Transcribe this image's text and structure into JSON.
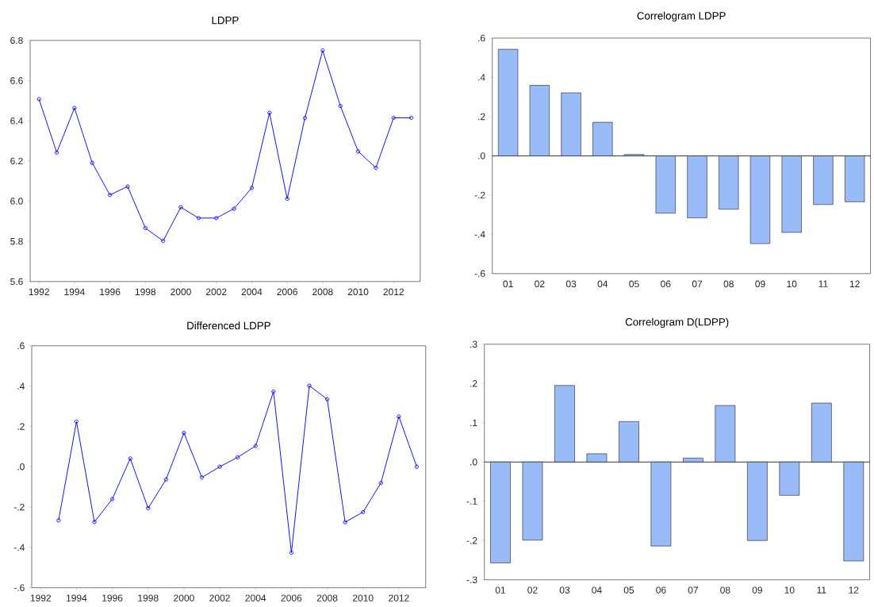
{
  "chart_data": [
    {
      "type": "line",
      "title": "LDPP",
      "marker": "circle",
      "line_style": "solid",
      "grid": false,
      "x": [
        1992,
        1993,
        1994,
        1995,
        1996,
        1997,
        1998,
        1999,
        2000,
        2001,
        2002,
        2003,
        2004,
        2005,
        2006,
        2007,
        2008,
        2009,
        2010,
        2011,
        2012,
        2013
      ],
      "series": [
        {
          "color": "#0000ff",
          "values": [
            6.508,
            6.242,
            6.464,
            6.191,
            6.031,
            6.073,
            5.866,
            5.802,
            5.97,
            5.916,
            5.916,
            5.963,
            6.066,
            6.44,
            6.012,
            6.414,
            6.75,
            6.474,
            6.248,
            6.166,
            6.415,
            6.415
          ]
        }
      ],
      "xlim": [
        1991.5,
        2013.5
      ],
      "xticks": [
        1992,
        1994,
        1996,
        1998,
        2000,
        2002,
        2004,
        2006,
        2008,
        2010,
        2012
      ],
      "ylim": [
        5.6,
        6.8
      ],
      "yticks": [
        {
          "value": 5.6,
          "label": "5.6"
        },
        {
          "value": 5.8,
          "label": "5.8"
        },
        {
          "value": 6.0,
          "label": "6.0"
        },
        {
          "value": 6.2,
          "label": "6.2"
        },
        {
          "value": 6.4,
          "label": "6.4"
        },
        {
          "value": 6.6,
          "label": "6.6"
        },
        {
          "value": 6.8,
          "label": "6.8"
        }
      ]
    },
    {
      "type": "bar",
      "title": "Correlogram LDPP",
      "ref_lines": [
        {
          "axis": "y",
          "value": 0,
          "color": "#000000"
        }
      ],
      "categories": [
        "01",
        "02",
        "03",
        "04",
        "05",
        "06",
        "07",
        "08",
        "09",
        "10",
        "11",
        "12"
      ],
      "series": [
        {
          "color": "#99bbf8",
          "values": [
            0.543,
            0.359,
            0.321,
            0.171,
            0.007,
            -0.292,
            -0.316,
            -0.272,
            -0.447,
            -0.39,
            -0.248,
            -0.234
          ]
        }
      ],
      "ylim": [
        -0.6,
        0.6
      ],
      "yticks": [
        {
          "value": -0.6,
          "label": "-.6"
        },
        {
          "value": -0.4,
          "label": "-.4"
        },
        {
          "value": -0.2,
          "label": "-.2"
        },
        {
          "value": 0,
          "label": ".0"
        },
        {
          "value": 0.2,
          "label": ".2"
        },
        {
          "value": 0.4,
          "label": ".4"
        },
        {
          "value": 0.6,
          "label": ".6"
        }
      ]
    },
    {
      "type": "line",
      "title": "Differenced LDPP",
      "marker": "circle",
      "line_style": "solid",
      "grid": false,
      "x": [
        1993,
        1994,
        1995,
        1996,
        1997,
        1998,
        1999,
        2000,
        2001,
        2002,
        2003,
        2004,
        2005,
        2006,
        2007,
        2008,
        2009,
        2010,
        2011,
        2012,
        2013
      ],
      "series": [
        {
          "color": "#0000ff",
          "values": [
            -0.266,
            0.224,
            -0.274,
            -0.16,
            0.041,
            -0.206,
            -0.063,
            0.168,
            -0.053,
            0.0,
            0.047,
            0.103,
            0.373,
            -0.426,
            0.402,
            0.335,
            -0.275,
            -0.225,
            -0.08,
            0.249,
            0.0
          ]
        }
      ],
      "xlim": [
        1991.5,
        2013.5
      ],
      "xticks": [
        1992,
        1994,
        1996,
        1998,
        2000,
        2002,
        2004,
        2006,
        2008,
        2010,
        2012
      ],
      "ylim": [
        -0.6,
        0.6
      ],
      "yticks": [
        {
          "value": -0.6,
          "label": "-.6"
        },
        {
          "value": -0.4,
          "label": "-.4"
        },
        {
          "value": -0.2,
          "label": "-.2"
        },
        {
          "value": 0,
          "label": ".0"
        },
        {
          "value": 0.2,
          "label": ".2"
        },
        {
          "value": 0.4,
          "label": ".4"
        },
        {
          "value": 0.6,
          "label": ".6"
        }
      ]
    },
    {
      "type": "bar",
      "title": "Correlogram D(LDPP)",
      "ref_lines": [
        {
          "axis": "y",
          "value": 0,
          "color": "#000000"
        }
      ],
      "categories": [
        "01",
        "02",
        "03",
        "04",
        "05",
        "06",
        "07",
        "08",
        "09",
        "10",
        "11",
        "12"
      ],
      "series": [
        {
          "color": "#99bbf8",
          "values": [
            -0.257,
            -0.199,
            0.195,
            0.021,
            0.103,
            -0.214,
            0.01,
            0.144,
            -0.2,
            -0.085,
            0.15,
            -0.252
          ]
        }
      ],
      "ylim": [
        -0.3,
        0.3
      ],
      "yticks": [
        {
          "value": -0.3,
          "label": "-.3"
        },
        {
          "value": -0.2,
          "label": "-.2"
        },
        {
          "value": -0.1,
          "label": "-.1"
        },
        {
          "value": 0,
          "label": ".0"
        },
        {
          "value": 0.1,
          "label": ".1"
        },
        {
          "value": 0.2,
          "label": ".2"
        },
        {
          "value": 0.3,
          "label": ".3"
        }
      ]
    }
  ]
}
